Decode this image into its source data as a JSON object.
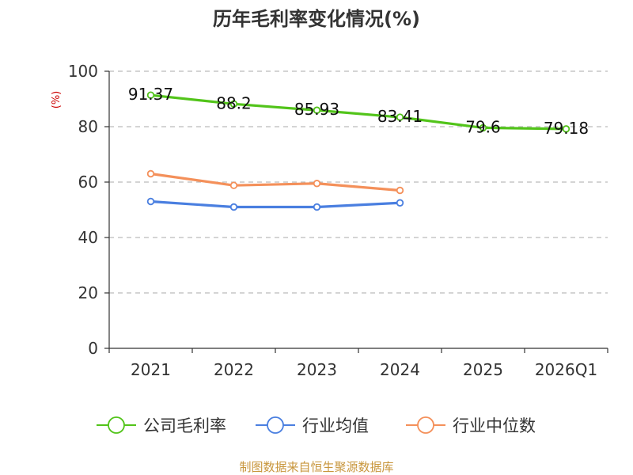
{
  "chart_data": {
    "type": "line",
    "title": "历年毛利率变化情况(%)",
    "ylabel": "(%)",
    "xlabel": "",
    "categories": [
      "2021",
      "2022",
      "2023",
      "2024",
      "2025",
      "2026Q1"
    ],
    "ylim": [
      0,
      100
    ],
    "yticks": [
      0,
      20,
      40,
      60,
      80,
      100
    ],
    "grid": true,
    "legend_position": "bottom",
    "series": [
      {
        "name": "公司毛利率",
        "color": "#52c41a",
        "values": [
          91.37,
          88.2,
          85.93,
          83.41,
          79.6,
          79.18
        ],
        "labels": [
          "91.37",
          "88.2",
          "85.93",
          "83.41",
          "79.6",
          "79.18"
        ]
      },
      {
        "name": "行业均值",
        "color": "#4a7fe0",
        "values": [
          53.0,
          51.0,
          51.0,
          52.5,
          null,
          null
        ]
      },
      {
        "name": "行业中位数",
        "color": "#f4905a",
        "values": [
          63.0,
          58.8,
          59.5,
          57.0,
          null,
          null
        ]
      }
    ]
  },
  "source": "制图数据来自恒生聚源数据库",
  "colors": {
    "title": "#333333",
    "axis": "#333333",
    "grid": "#bbbbbb",
    "ylabel": "#cc0000",
    "source": "#c8963c"
  }
}
